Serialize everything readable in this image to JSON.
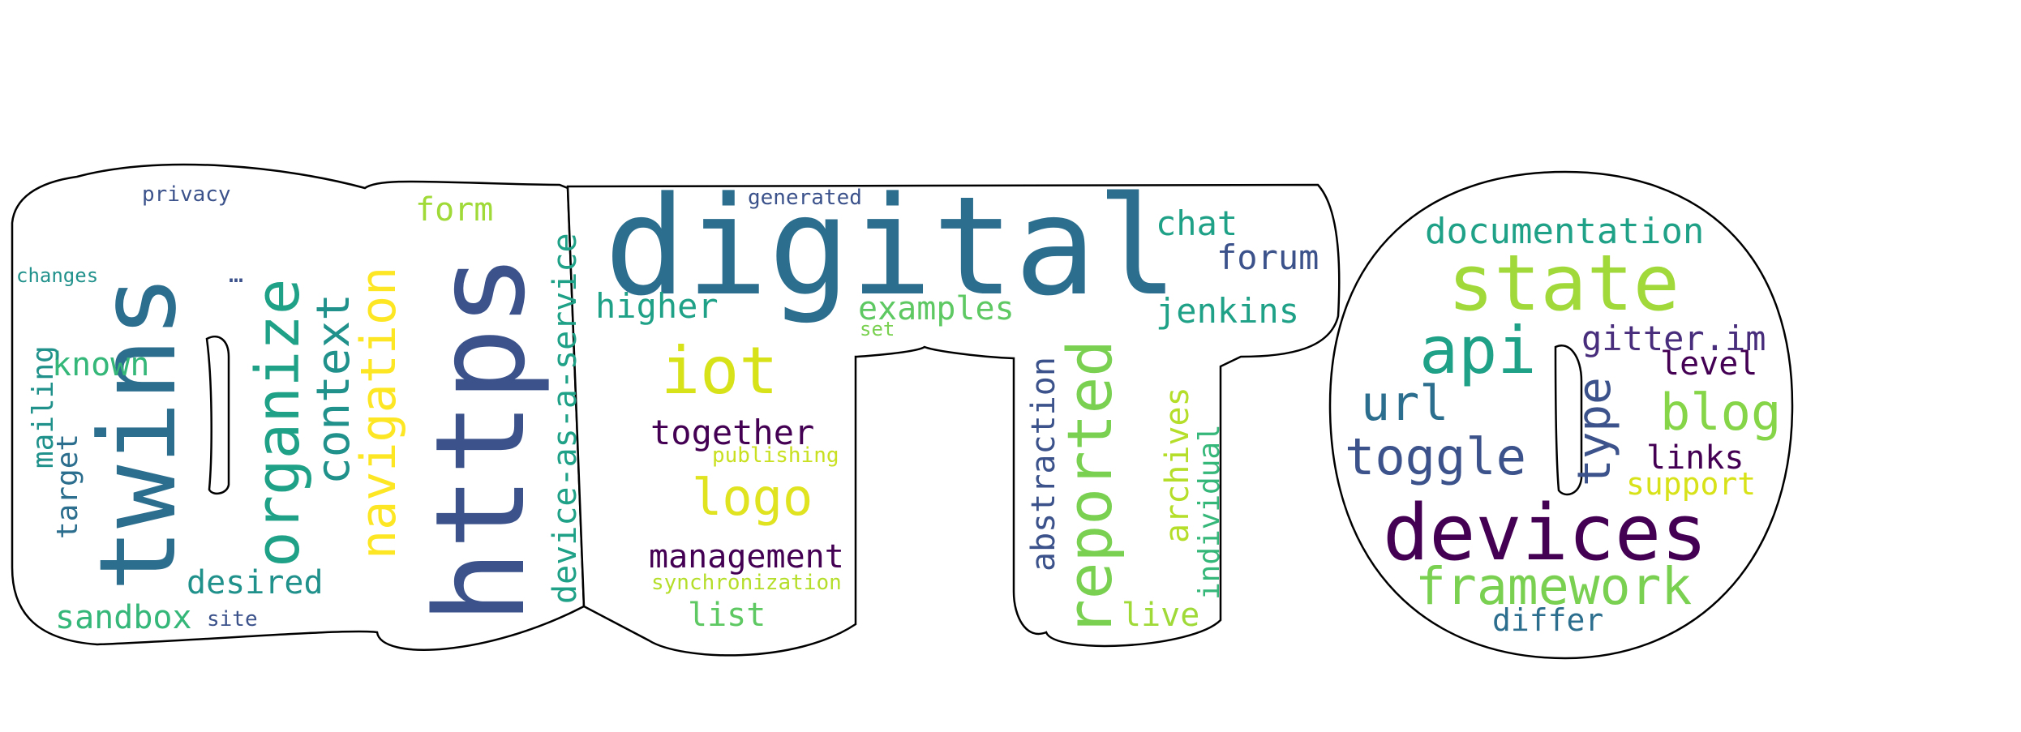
{
  "title": "",
  "palette": {
    "dark_purple": "#440154",
    "indigo": "#3b528b",
    "steel_blue": "#2c6e8e",
    "teal": "#21918c",
    "sea_green": "#1fa187",
    "green": "#35b779",
    "light_green": "#7ad151",
    "lime": "#b5de2b",
    "yellow": "#e8e419",
    "outline": "#000000",
    "background": "#ffffff"
  },
  "mask_shape": "word silhouette with black outline",
  "words": [
    {
      "text": "digital",
      "color": "#2c6e8e",
      "orientation": "horizontal"
    },
    {
      "text": "https",
      "color": "#3b528b",
      "orientation": "vertical"
    },
    {
      "text": "twins",
      "color": "#2c6e8e",
      "orientation": "vertical"
    },
    {
      "text": "state",
      "color": "#a2d93a",
      "orientation": "horizontal"
    },
    {
      "text": "devices",
      "color": "#440154",
      "orientation": "horizontal"
    },
    {
      "text": "reported",
      "color": "#7ad151",
      "orientation": "vertical"
    },
    {
      "text": "organize",
      "color": "#1fa187",
      "orientation": "vertical"
    },
    {
      "text": "navigation",
      "color": "#fde725",
      "orientation": "vertical"
    },
    {
      "text": "api",
      "color": "#1fa187",
      "orientation": "horizontal"
    },
    {
      "text": "iot",
      "color": "#d8e219",
      "orientation": "horizontal"
    },
    {
      "text": "context",
      "color": "#21918c",
      "orientation": "vertical"
    },
    {
      "text": "framework",
      "color": "#7ad151",
      "orientation": "horizontal"
    },
    {
      "text": "toggle",
      "color": "#3b528b",
      "orientation": "horizontal"
    },
    {
      "text": "logo",
      "color": "#e0e31f",
      "orientation": "horizontal"
    },
    {
      "text": "device-as-a-service",
      "color": "#1fa187",
      "orientation": "vertical"
    },
    {
      "text": "url",
      "color": "#2c6e8e",
      "orientation": "horizontal"
    },
    {
      "text": "blog",
      "color": "#86d549",
      "orientation": "horizontal"
    },
    {
      "text": "type",
      "color": "#3b528b",
      "orientation": "vertical"
    },
    {
      "text": "documentation",
      "color": "#1fa187",
      "orientation": "horizontal"
    },
    {
      "text": "abstraction",
      "color": "#3b528b",
      "orientation": "vertical"
    },
    {
      "text": "management",
      "color": "#440154",
      "orientation": "horizontal"
    },
    {
      "text": "together",
      "color": "#440154",
      "orientation": "horizontal"
    },
    {
      "text": "archives",
      "color": "#b5de2b",
      "orientation": "vertical"
    },
    {
      "text": "individual",
      "color": "#35b779",
      "orientation": "vertical"
    },
    {
      "text": "jenkins",
      "color": "#1fa187",
      "orientation": "horizontal"
    },
    {
      "text": "gitter.im",
      "color": "#472d7b",
      "orientation": "horizontal"
    },
    {
      "text": "examples",
      "color": "#5ec962",
      "orientation": "horizontal"
    },
    {
      "text": "higher",
      "color": "#1fa187",
      "orientation": "horizontal"
    },
    {
      "text": "desired",
      "color": "#21918c",
      "orientation": "horizontal"
    },
    {
      "text": "sandbox",
      "color": "#35b779",
      "orientation": "horizontal"
    },
    {
      "text": "forum",
      "color": "#3b528b",
      "orientation": "horizontal"
    },
    {
      "text": "chat",
      "color": "#1fa187",
      "orientation": "horizontal"
    },
    {
      "text": "known",
      "color": "#35b779",
      "orientation": "horizontal"
    },
    {
      "text": "level",
      "color": "#440154",
      "orientation": "horizontal"
    },
    {
      "text": "links",
      "color": "#440154",
      "orientation": "horizontal"
    },
    {
      "text": "form",
      "color": "#a0da39",
      "orientation": "horizontal"
    },
    {
      "text": "list",
      "color": "#5ec962",
      "orientation": "horizontal"
    },
    {
      "text": "live",
      "color": "#a0da39",
      "orientation": "horizontal"
    },
    {
      "text": "support",
      "color": "#d8e219",
      "orientation": "horizontal"
    },
    {
      "text": "differ",
      "color": "#2c6e8e",
      "orientation": "horizontal"
    },
    {
      "text": "mailing",
      "color": "#21918c",
      "orientation": "vertical"
    },
    {
      "text": "target",
      "color": "#2c6e8e",
      "orientation": "vertical"
    },
    {
      "text": "publishing",
      "color": "#c8e020",
      "orientation": "horizontal"
    },
    {
      "text": "synchronization",
      "color": "#b5de2b",
      "orientation": "horizontal"
    },
    {
      "text": "generated",
      "color": "#3b528b",
      "orientation": "horizontal"
    },
    {
      "text": "privacy",
      "color": "#3b528b",
      "orientation": "horizontal"
    },
    {
      "text": "changes",
      "color": "#21918c",
      "orientation": "horizontal"
    },
    {
      "text": "site",
      "color": "#3b528b",
      "orientation": "horizontal"
    },
    {
      "text": "set",
      "color": "#7ad151",
      "orientation": "horizontal"
    },
    {
      "text": "…",
      "color": "#3b528b",
      "orientation": "horizontal"
    }
  ]
}
